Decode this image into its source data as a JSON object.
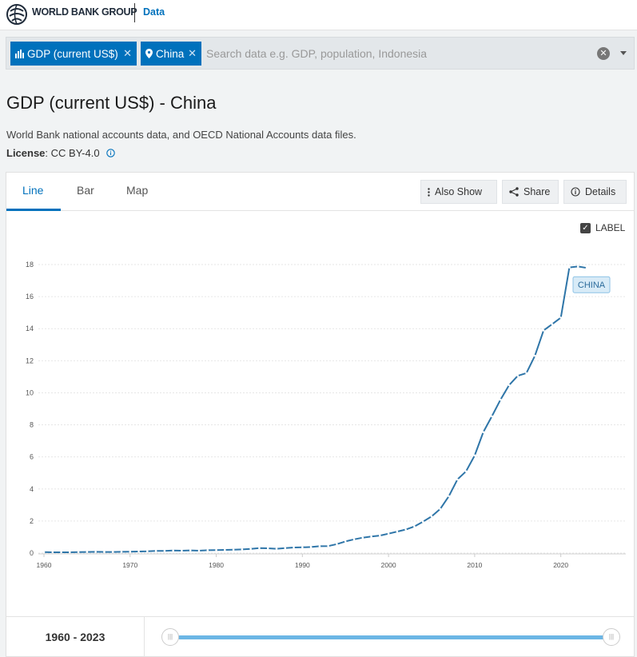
{
  "header": {
    "brand": "WORLD BANK GROUP",
    "section": "Data"
  },
  "search": {
    "chips": [
      {
        "label": "GDP (current US$)",
        "icon": "bar-chart-icon"
      },
      {
        "label": "China",
        "icon": "map-pin-icon"
      }
    ],
    "placeholder": "Search data e.g. GDP, population, Indonesia"
  },
  "page": {
    "title": "GDP (current US$) - China",
    "description": "World Bank national accounts data, and OECD National Accounts data files.",
    "license_label": "License",
    "license_value": " : CC BY-4.0"
  },
  "tabs": [
    "Line",
    "Bar",
    "Map"
  ],
  "buttons": {
    "also_show": "Also Show",
    "share": "Share",
    "details": "Details"
  },
  "label_toggle": "LABEL",
  "range": {
    "text": "1960 - 2023"
  },
  "colors": {
    "accent": "#0071bc",
    "line": "#2e75a8"
  },
  "chart_data": {
    "type": "line",
    "title": "",
    "xlabel": "",
    "ylabel": "",
    "xlim": [
      1960,
      2023
    ],
    "ylim": [
      0,
      18
    ],
    "xticks": [
      1960,
      1970,
      1980,
      1990,
      2000,
      2010,
      2020
    ],
    "yticks": [
      0,
      2,
      4,
      6,
      8,
      10,
      12,
      14,
      16,
      18
    ],
    "grid": true,
    "series": [
      {
        "name": "CHINA",
        "x": [
          1960,
          1961,
          1962,
          1963,
          1964,
          1965,
          1966,
          1967,
          1968,
          1969,
          1970,
          1971,
          1972,
          1973,
          1974,
          1975,
          1976,
          1977,
          1978,
          1979,
          1980,
          1981,
          1982,
          1983,
          1984,
          1985,
          1986,
          1987,
          1988,
          1989,
          1990,
          1991,
          1992,
          1993,
          1994,
          1995,
          1996,
          1997,
          1998,
          1999,
          2000,
          2001,
          2002,
          2003,
          2004,
          2005,
          2006,
          2007,
          2008,
          2009,
          2010,
          2011,
          2012,
          2013,
          2014,
          2015,
          2016,
          2017,
          2018,
          2019,
          2020,
          2021,
          2022,
          2023
        ],
        "values": [
          0.06,
          0.05,
          0.05,
          0.05,
          0.06,
          0.07,
          0.08,
          0.07,
          0.07,
          0.08,
          0.09,
          0.1,
          0.11,
          0.14,
          0.14,
          0.16,
          0.15,
          0.17,
          0.15,
          0.18,
          0.19,
          0.2,
          0.21,
          0.23,
          0.26,
          0.31,
          0.3,
          0.27,
          0.31,
          0.35,
          0.36,
          0.38,
          0.43,
          0.44,
          0.56,
          0.73,
          0.86,
          0.96,
          1.03,
          1.09,
          1.21,
          1.34,
          1.47,
          1.66,
          1.96,
          2.29,
          2.75,
          3.55,
          4.59,
          5.1,
          6.09,
          7.55,
          8.53,
          9.57,
          10.48,
          11.06,
          11.23,
          12.31,
          13.89,
          14.28,
          14.69,
          17.82,
          17.88,
          17.79
        ]
      }
    ]
  }
}
